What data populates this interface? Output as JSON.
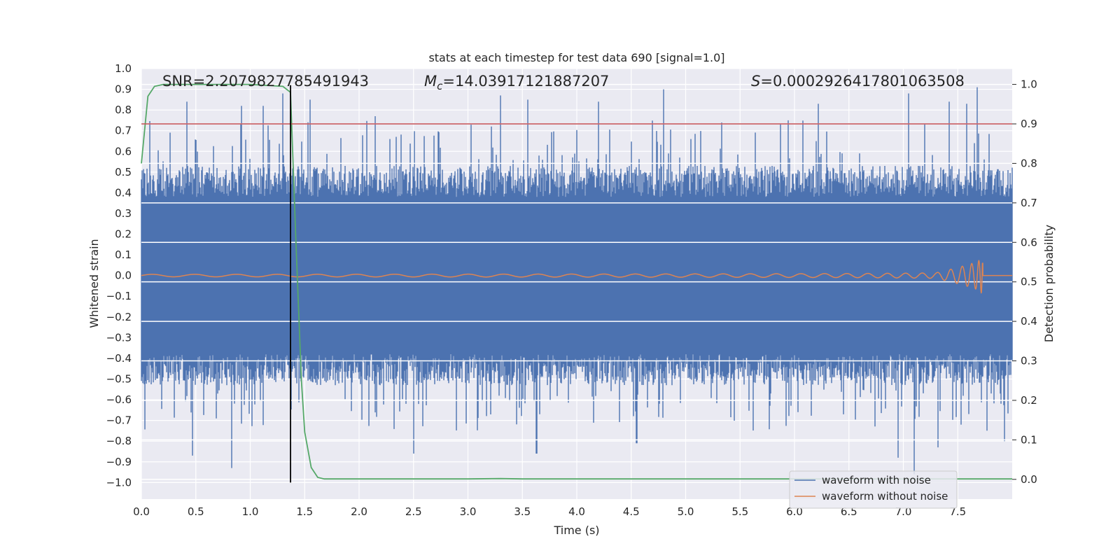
{
  "chart_data": {
    "type": "line",
    "title": "stats at each timestep for test data 690 [signal=1.0]",
    "xlabel": "Time (s)",
    "ylabel_left": "Whitened strain",
    "ylabel_right": "Detection probability",
    "xlim": [
      0.0,
      8.0
    ],
    "ylim_left": [
      -1.08,
      1.0
    ],
    "ylim_right": [
      -0.05,
      1.04
    ],
    "x_ticks": [
      "0.0",
      "0.5",
      "1.0",
      "1.5",
      "2.0",
      "2.5",
      "3.0",
      "3.5",
      "4.0",
      "4.5",
      "5.0",
      "5.5",
      "6.0",
      "6.5",
      "7.0",
      "7.5"
    ],
    "y_left_ticks": [
      "1.0",
      "0.9",
      "0.8",
      "0.7",
      "0.6",
      "0.5",
      "0.4",
      "0.3",
      "0.2",
      "0.1",
      "0.0",
      "−0.1",
      "−0.2",
      "−0.3",
      "−0.4",
      "−0.5",
      "−0.6",
      "−0.7",
      "−0.8",
      "−0.9",
      "−1.0"
    ],
    "y_right_ticks": [
      "1.0",
      "0.9",
      "0.8",
      "0.7",
      "0.6",
      "0.5",
      "0.4",
      "0.3",
      "0.2",
      "0.1",
      "0.0"
    ],
    "annotations": {
      "snr": "SNR=2.2079827785491943",
      "mc_prefix": "M",
      "mc_sub": "c",
      "mc_value": "=14.03917121887207",
      "s_prefix": "S",
      "s_value": "=0.0002926417801063508"
    },
    "threshold_line": {
      "axis": "right",
      "y": 0.9,
      "color": "#c44e52"
    },
    "marker_line": {
      "x": 1.37,
      "y_range": [
        -1.0,
        0.92
      ],
      "color": "#000000"
    },
    "series": [
      {
        "name": "waveform with noise",
        "color": "#4c72b0",
        "axis": "left",
        "description": "dense noise, roughly within ±0.55 with spikes up to ±0.92",
        "spikes": [
          [
            0.42,
            0.84
          ],
          [
            0.47,
            -0.87
          ],
          [
            0.83,
            -0.93
          ],
          [
            0.92,
            0.82
          ],
          [
            1.12,
            0.82
          ],
          [
            1.3,
            0.88
          ],
          [
            1.55,
            0.85
          ],
          [
            2.15,
            0.77
          ],
          [
            2.5,
            -0.86
          ],
          [
            3.3,
            0.87
          ],
          [
            3.55,
            0.85
          ],
          [
            3.63,
            -0.86
          ],
          [
            4.2,
            0.84
          ],
          [
            4.55,
            -0.81
          ],
          [
            4.8,
            0.9
          ],
          [
            6.22,
            0.83
          ],
          [
            6.95,
            -0.88
          ],
          [
            7.05,
            0.88
          ],
          [
            7.1,
            -0.96
          ],
          [
            7.32,
            -0.83
          ],
          [
            7.42,
            0.84
          ],
          [
            7.58,
            0.83
          ],
          [
            7.68,
            0.91
          ],
          [
            7.93,
            -0.8
          ]
        ]
      },
      {
        "name": "waveform without noise",
        "color": "#dd8452",
        "axis": "left",
        "description": "chirp: amplitude ~0.006 at t=0 growing to ~0.1 at t=7.73, then 0"
      },
      {
        "name": "detection probability",
        "color": "#55a868",
        "axis": "right",
        "x": [
          0.0,
          0.06,
          0.12,
          0.2,
          0.5,
          1.0,
          1.3,
          1.37,
          1.42,
          1.47,
          1.5,
          1.56,
          1.62,
          1.68,
          2.0,
          3.0,
          3.3,
          3.5,
          4.0,
          8.0
        ],
        "y": [
          0.8,
          0.97,
          0.995,
          1.0,
          1.0,
          1.0,
          0.995,
          0.98,
          0.6,
          0.25,
          0.12,
          0.03,
          0.005,
          0.001,
          0.001,
          0.001,
          0.002,
          0.001,
          0.001,
          0.001
        ]
      }
    ],
    "legend": {
      "position": "lower-right",
      "entries": [
        {
          "label": "waveform with noise",
          "color": "#4c72b0"
        },
        {
          "label": "waveform without noise",
          "color": "#dd8452"
        }
      ]
    },
    "colors": {
      "plot_bg": "#eaeaf2",
      "grid": "#ffffff",
      "text": "#262626"
    }
  }
}
